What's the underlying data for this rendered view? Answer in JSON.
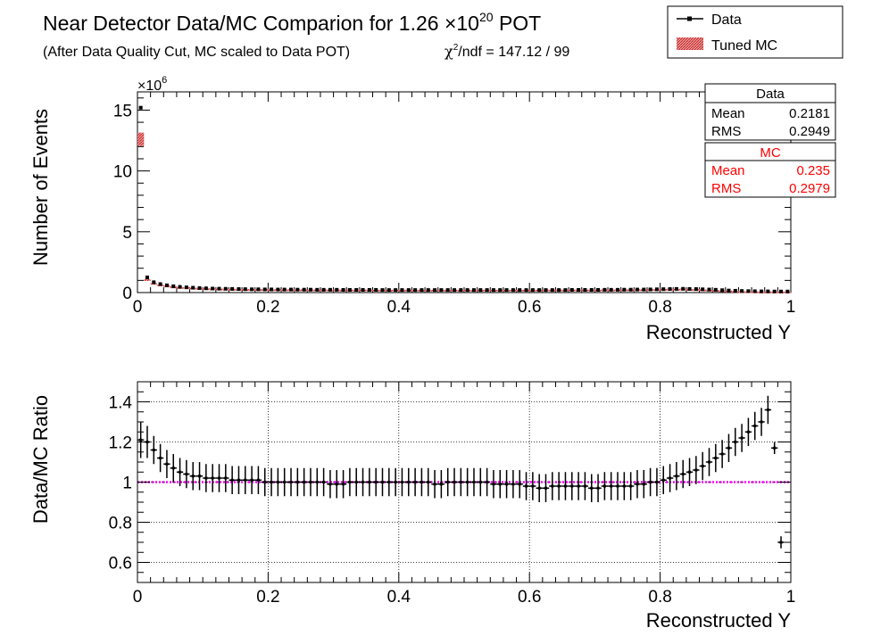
{
  "title": {
    "main": "Near Detector Data/MC Comparion for 1.26 ×10",
    "main_exp": "20",
    "main_suffix": " POT",
    "subtitle": "(After Data Quality Cut, MC scaled to Data POT)",
    "chi2_symbol": "χ",
    "chi2_exp": "2",
    "chi2_text": "/ndf = 147.12 / 99"
  },
  "legend": {
    "items": [
      {
        "label": "Data",
        "color": "#000000"
      },
      {
        "label": "Tuned MC",
        "color": "#cc2222"
      }
    ]
  },
  "stats": {
    "data": {
      "title": "Data",
      "mean_label": "Mean",
      "mean": "0.2181",
      "rms_label": "RMS",
      "rms": "0.2949",
      "color": "#000000"
    },
    "mc": {
      "title": "MC",
      "mean_label": "Mean",
      "mean": "0.235",
      "rms_label": "RMS",
      "rms": "0.2979",
      "color": "#ff0000"
    }
  },
  "ref_line_color": "#ff00ff",
  "chart_data": [
    {
      "type": "scatter",
      "xlabel": "Reconstructed Y",
      "ylabel": "Number of Events",
      "multiplier": "×10",
      "multiplier_exp": "6",
      "xlim": [
        0,
        1
      ],
      "ylim": [
        0,
        16.5
      ],
      "xticks": [
        "0",
        "0.2",
        "0.4",
        "0.6",
        "0.8",
        "1"
      ],
      "yticks": [
        "0",
        "5",
        "10",
        "15"
      ],
      "grid": false,
      "series": [
        {
          "name": "Data",
          "color": "#000000",
          "x": [
            0.005,
            0.015,
            0.025,
            0.035,
            0.045,
            0.055,
            0.065,
            0.075,
            0.085,
            0.095,
            0.105,
            0.115,
            0.125,
            0.135,
            0.145,
            0.155,
            0.165,
            0.175,
            0.185,
            0.195,
            0.205,
            0.215,
            0.225,
            0.235,
            0.245,
            0.255,
            0.265,
            0.275,
            0.285,
            0.295,
            0.305,
            0.315,
            0.325,
            0.335,
            0.345,
            0.355,
            0.365,
            0.375,
            0.385,
            0.395,
            0.405,
            0.415,
            0.425,
            0.435,
            0.445,
            0.455,
            0.465,
            0.475,
            0.485,
            0.495,
            0.505,
            0.515,
            0.525,
            0.535,
            0.545,
            0.555,
            0.565,
            0.575,
            0.585,
            0.595,
            0.605,
            0.615,
            0.625,
            0.635,
            0.645,
            0.655,
            0.665,
            0.675,
            0.685,
            0.695,
            0.705,
            0.715,
            0.725,
            0.735,
            0.745,
            0.755,
            0.765,
            0.775,
            0.785,
            0.795,
            0.805,
            0.815,
            0.825,
            0.835,
            0.845,
            0.855,
            0.865,
            0.875,
            0.885,
            0.895,
            0.905,
            0.915,
            0.925,
            0.935,
            0.945,
            0.955,
            0.965,
            0.975,
            0.985,
            0.995
          ],
          "values": [
            15.2,
            1.25,
            0.85,
            0.7,
            0.6,
            0.52,
            0.47,
            0.43,
            0.4,
            0.37,
            0.35,
            0.33,
            0.32,
            0.31,
            0.3,
            0.29,
            0.28,
            0.27,
            0.27,
            0.26,
            0.26,
            0.25,
            0.25,
            0.25,
            0.24,
            0.24,
            0.24,
            0.23,
            0.23,
            0.23,
            0.23,
            0.22,
            0.22,
            0.22,
            0.22,
            0.22,
            0.22,
            0.21,
            0.21,
            0.21,
            0.21,
            0.21,
            0.21,
            0.21,
            0.21,
            0.21,
            0.21,
            0.21,
            0.21,
            0.21,
            0.21,
            0.21,
            0.21,
            0.21,
            0.21,
            0.21,
            0.21,
            0.21,
            0.21,
            0.21,
            0.21,
            0.21,
            0.21,
            0.21,
            0.21,
            0.21,
            0.22,
            0.22,
            0.22,
            0.22,
            0.22,
            0.23,
            0.23,
            0.23,
            0.24,
            0.24,
            0.25,
            0.25,
            0.26,
            0.27,
            0.28,
            0.29,
            0.3,
            0.31,
            0.3,
            0.29,
            0.27,
            0.25,
            0.23,
            0.2,
            0.17,
            0.15,
            0.13,
            0.12,
            0.11,
            0.1,
            0.1,
            0.09,
            0.09,
            0.09
          ]
        },
        {
          "name": "Tuned MC",
          "color": "#cc2222",
          "x": [
            0.005,
            0.015,
            0.025,
            0.035,
            0.045,
            0.055,
            0.065,
            0.075,
            0.085,
            0.095,
            0.105,
            0.115,
            0.125,
            0.135,
            0.145,
            0.155,
            0.165,
            0.175,
            0.185,
            0.195,
            0.205,
            0.215,
            0.225,
            0.235,
            0.245,
            0.255,
            0.265,
            0.275,
            0.285,
            0.295,
            0.305,
            0.315,
            0.325,
            0.335,
            0.345,
            0.355,
            0.365,
            0.375,
            0.385,
            0.395,
            0.405,
            0.415,
            0.425,
            0.435,
            0.445,
            0.455,
            0.465,
            0.475,
            0.485,
            0.495,
            0.505,
            0.515,
            0.525,
            0.535,
            0.545,
            0.555,
            0.565,
            0.575,
            0.585,
            0.595,
            0.605,
            0.615,
            0.625,
            0.635,
            0.645,
            0.655,
            0.665,
            0.675,
            0.685,
            0.695,
            0.705,
            0.715,
            0.725,
            0.735,
            0.745,
            0.755,
            0.765,
            0.775,
            0.785,
            0.795,
            0.805,
            0.815,
            0.825,
            0.835,
            0.845,
            0.855,
            0.865,
            0.875,
            0.885,
            0.895,
            0.905,
            0.915,
            0.925,
            0.935,
            0.945,
            0.955,
            0.965,
            0.975,
            0.985,
            0.995
          ],
          "values": [
            12.6,
            1.05,
            0.75,
            0.63,
            0.55,
            0.48,
            0.44,
            0.41,
            0.38,
            0.36,
            0.34,
            0.32,
            0.31,
            0.3,
            0.29,
            0.28,
            0.27,
            0.27,
            0.26,
            0.26,
            0.25,
            0.25,
            0.25,
            0.24,
            0.24,
            0.24,
            0.23,
            0.23,
            0.23,
            0.23,
            0.22,
            0.22,
            0.22,
            0.22,
            0.22,
            0.22,
            0.21,
            0.21,
            0.21,
            0.21,
            0.21,
            0.21,
            0.21,
            0.21,
            0.21,
            0.21,
            0.21,
            0.21,
            0.21,
            0.21,
            0.21,
            0.21,
            0.21,
            0.21,
            0.21,
            0.21,
            0.21,
            0.21,
            0.21,
            0.21,
            0.21,
            0.22,
            0.22,
            0.22,
            0.22,
            0.22,
            0.22,
            0.22,
            0.22,
            0.22,
            0.22,
            0.23,
            0.23,
            0.23,
            0.24,
            0.24,
            0.25,
            0.25,
            0.26,
            0.27,
            0.28,
            0.29,
            0.29,
            0.3,
            0.28,
            0.26,
            0.24,
            0.21,
            0.19,
            0.16,
            0.14,
            0.12,
            0.1,
            0.09,
            0.08,
            0.07,
            0.07,
            0.07,
            0.07,
            0.07
          ],
          "errors": [
            0.55,
            0.05,
            0.04,
            0.03,
            0.03,
            0.02,
            0.02,
            0.02,
            0.02,
            0.02,
            0.02,
            0.02,
            0.02,
            0.02,
            0.02,
            0.02,
            0.02,
            0.02,
            0.02,
            0.02,
            0.02,
            0.02,
            0.02,
            0.02,
            0.02,
            0.02,
            0.02,
            0.02,
            0.02,
            0.02,
            0.02,
            0.02,
            0.02,
            0.02,
            0.02,
            0.02,
            0.02,
            0.02,
            0.02,
            0.02,
            0.02,
            0.02,
            0.02,
            0.02,
            0.02,
            0.02,
            0.02,
            0.02,
            0.02,
            0.02,
            0.02,
            0.02,
            0.02,
            0.02,
            0.02,
            0.02,
            0.02,
            0.02,
            0.02,
            0.02,
            0.02,
            0.02,
            0.02,
            0.02,
            0.02,
            0.02,
            0.02,
            0.02,
            0.02,
            0.02,
            0.02,
            0.02,
            0.02,
            0.02,
            0.02,
            0.02,
            0.02,
            0.02,
            0.02,
            0.02,
            0.02,
            0.02,
            0.02,
            0.02,
            0.02,
            0.02,
            0.02,
            0.02,
            0.02,
            0.02,
            0.02,
            0.02,
            0.02,
            0.02,
            0.02,
            0.02,
            0.02,
            0.02,
            0.02,
            0.02
          ]
        }
      ]
    },
    {
      "type": "scatter",
      "xlabel": "Reconstructed Y",
      "ylabel": "Data/MC Ratio",
      "xlim": [
        0,
        1
      ],
      "ylim": [
        0.5,
        1.5
      ],
      "xticks": [
        "0",
        "0.2",
        "0.4",
        "0.6",
        "0.8",
        "1"
      ],
      "yticks": [
        "0.6",
        "0.8",
        "1",
        "1.2",
        "1.4"
      ],
      "grid": true,
      "reference_line": 1,
      "series": [
        {
          "name": "Data/MC",
          "color": "#000000",
          "x": [
            0.005,
            0.015,
            0.025,
            0.035,
            0.045,
            0.055,
            0.065,
            0.075,
            0.085,
            0.095,
            0.105,
            0.115,
            0.125,
            0.135,
            0.145,
            0.155,
            0.165,
            0.175,
            0.185,
            0.195,
            0.205,
            0.215,
            0.225,
            0.235,
            0.245,
            0.255,
            0.265,
            0.275,
            0.285,
            0.295,
            0.305,
            0.315,
            0.325,
            0.335,
            0.345,
            0.355,
            0.365,
            0.375,
            0.385,
            0.395,
            0.405,
            0.415,
            0.425,
            0.435,
            0.445,
            0.455,
            0.465,
            0.475,
            0.485,
            0.495,
            0.505,
            0.515,
            0.525,
            0.535,
            0.545,
            0.555,
            0.565,
            0.575,
            0.585,
            0.595,
            0.605,
            0.615,
            0.625,
            0.635,
            0.645,
            0.655,
            0.665,
            0.675,
            0.685,
            0.695,
            0.705,
            0.715,
            0.725,
            0.735,
            0.745,
            0.755,
            0.765,
            0.775,
            0.785,
            0.795,
            0.805,
            0.815,
            0.825,
            0.835,
            0.845,
            0.855,
            0.865,
            0.875,
            0.885,
            0.895,
            0.905,
            0.915,
            0.925,
            0.935,
            0.945,
            0.955,
            0.965,
            0.975,
            0.985
          ],
          "values": [
            1.21,
            1.2,
            1.16,
            1.12,
            1.09,
            1.07,
            1.05,
            1.04,
            1.03,
            1.03,
            1.02,
            1.02,
            1.02,
            1.02,
            1.01,
            1.01,
            1.01,
            1.01,
            1.01,
            1.0,
            1.0,
            1.0,
            1.0,
            1.0,
            1.0,
            1.0,
            1.0,
            1.0,
            1.0,
            0.99,
            0.99,
            0.99,
            1.0,
            1.0,
            1.0,
            1.0,
            1.0,
            1.0,
            1.0,
            1.0,
            1.0,
            1.0,
            1.0,
            1.0,
            1.0,
            0.99,
            0.99,
            1.0,
            1.0,
            1.0,
            1.0,
            1.0,
            1.0,
            1.0,
            0.99,
            0.99,
            0.99,
            0.99,
            0.99,
            0.98,
            0.98,
            0.97,
            0.97,
            0.98,
            0.98,
            0.98,
            0.98,
            0.98,
            0.98,
            0.97,
            0.97,
            0.98,
            0.98,
            0.98,
            0.98,
            0.98,
            0.99,
            0.99,
            1.0,
            1.0,
            1.01,
            1.02,
            1.03,
            1.04,
            1.05,
            1.06,
            1.08,
            1.1,
            1.12,
            1.14,
            1.17,
            1.2,
            1.22,
            1.25,
            1.28,
            1.3,
            1.36,
            1.17,
            0.7
          ],
          "errors": [
            0.09,
            0.08,
            0.07,
            0.07,
            0.07,
            0.07,
            0.07,
            0.07,
            0.07,
            0.07,
            0.07,
            0.07,
            0.07,
            0.07,
            0.07,
            0.07,
            0.07,
            0.07,
            0.07,
            0.07,
            0.07,
            0.07,
            0.07,
            0.07,
            0.07,
            0.07,
            0.07,
            0.07,
            0.07,
            0.07,
            0.07,
            0.07,
            0.07,
            0.07,
            0.07,
            0.07,
            0.07,
            0.07,
            0.07,
            0.07,
            0.07,
            0.07,
            0.07,
            0.07,
            0.07,
            0.07,
            0.07,
            0.07,
            0.07,
            0.07,
            0.07,
            0.07,
            0.07,
            0.07,
            0.07,
            0.07,
            0.07,
            0.07,
            0.07,
            0.07,
            0.07,
            0.07,
            0.07,
            0.07,
            0.07,
            0.07,
            0.07,
            0.07,
            0.07,
            0.07,
            0.07,
            0.07,
            0.07,
            0.07,
            0.07,
            0.07,
            0.07,
            0.07,
            0.07,
            0.07,
            0.07,
            0.07,
            0.07,
            0.07,
            0.07,
            0.07,
            0.07,
            0.07,
            0.07,
            0.07,
            0.07,
            0.07,
            0.07,
            0.07,
            0.07,
            0.07,
            0.07,
            0.03,
            0.03
          ]
        }
      ]
    }
  ]
}
